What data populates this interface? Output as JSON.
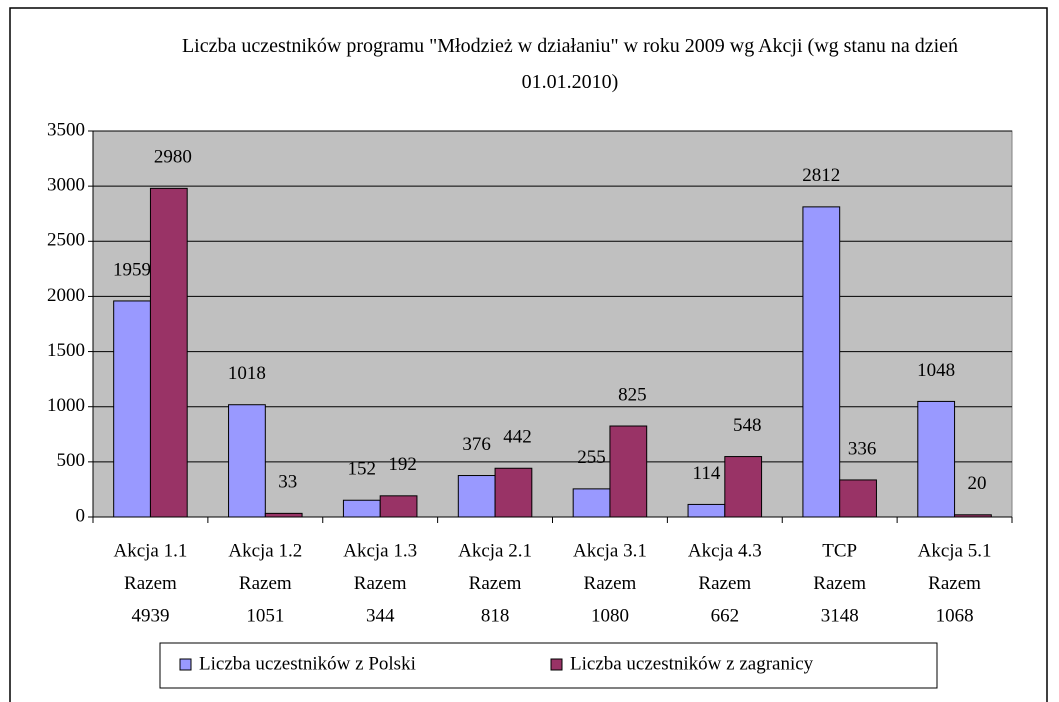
{
  "chart_data": {
    "type": "bar",
    "title": "Liczba uczestników programu \"Młodzież w działaniu\" w roku 2009 wg Akcji (wg stanu na dzień 01.01.2010)",
    "categories": [
      [
        "Akcja 1.1",
        "Razem",
        "4939"
      ],
      [
        "Akcja 1.2",
        "Razem",
        "1051"
      ],
      [
        "Akcja 1.3",
        "Razem",
        "344"
      ],
      [
        "Akcja 2.1",
        "Razem",
        "818"
      ],
      [
        "Akcja 3.1",
        "Razem",
        "1080"
      ],
      [
        "Akcja 4.3",
        "Razem",
        "662"
      ],
      [
        "TCP",
        "Razem",
        "3148"
      ],
      [
        "Akcja 5.1",
        "Razem",
        "1068"
      ]
    ],
    "series": [
      {
        "name": "Liczba uczestników z Polski",
        "color": "#9999ff",
        "values": [
          1959,
          1018,
          152,
          376,
          255,
          114,
          2812,
          1048
        ]
      },
      {
        "name": "Liczba uczestników z zagranicy",
        "color": "#993366",
        "values": [
          2980,
          33,
          192,
          442,
          825,
          548,
          336,
          20
        ]
      }
    ],
    "ylim": [
      0,
      3500
    ],
    "yticks": [
      0,
      500,
      1000,
      1500,
      2000,
      2500,
      3000,
      3500
    ],
    "grid": true,
    "plot_background": "#c0c0c0",
    "legend": "bottom"
  }
}
